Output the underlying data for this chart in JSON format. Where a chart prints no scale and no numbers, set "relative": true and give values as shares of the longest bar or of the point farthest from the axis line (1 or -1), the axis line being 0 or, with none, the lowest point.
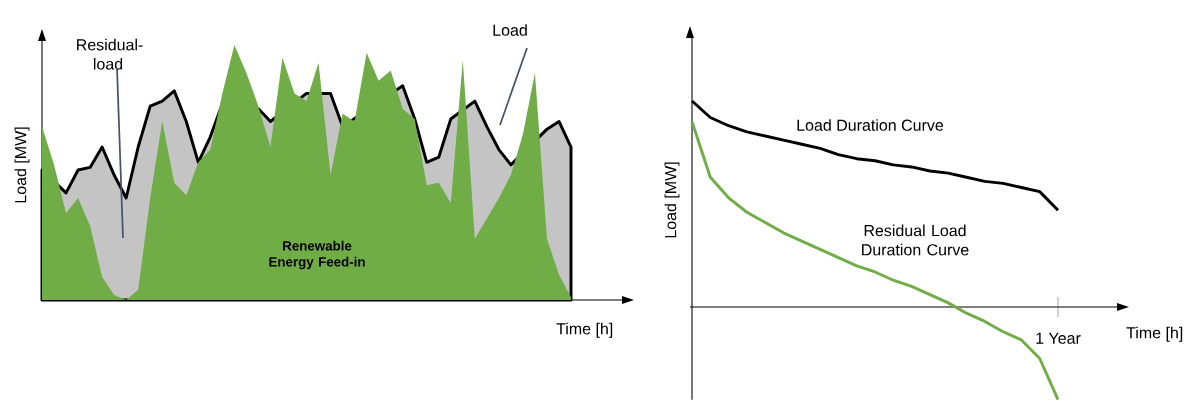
{
  "chart_data": [
    {
      "type": "line",
      "relative": true,
      "xlabel": "Time [h]",
      "ylabel": "Load [MW]",
      "annotations": [
        "Residual-load"
      ],
      "categories": [
        null,
        null,
        null,
        null,
        null,
        null,
        null,
        null,
        null,
        null,
        null,
        null,
        null,
        null,
        null,
        null,
        null,
        null,
        null,
        null,
        null,
        null,
        null,
        null,
        null,
        null,
        null,
        null,
        null,
        null,
        null,
        null,
        null,
        null,
        null,
        null,
        null,
        null,
        null,
        null,
        null,
        null,
        null,
        null,
        null
      ],
      "series": [
        {
          "name": "Load",
          "type": "area",
          "color": "#000000",
          "values": [
            0.51,
            null,
            0.42,
            0.51,
            0.52,
            0.6,
            0.49,
            0.4,
            0.6,
            0.76,
            0.78,
            0.82,
            0.7,
            0.54,
            0.64,
            0.77,
            null,
            null,
            0.75,
            0.7,
            null,
            null,
            0.81,
            0.81,
            0.81,
            0.68,
            null,
            null,
            null,
            null,
            0.84,
            0.71,
            0.54,
            0.56,
            0.71,
            null,
            0.78,
            0.68,
            0.59,
            0.53,
            null,
            null,
            0.67,
            0.7,
            0.6
          ]
        },
        {
          "name": "Renewable Energy Feed-in",
          "type": "area",
          "color": "#70ad47",
          "values": [
            0.68,
            0.53,
            0.34,
            0.4,
            0.29,
            0.09,
            0.02,
            0,
            0.04,
            0.4,
            0.7,
            0.46,
            0.41,
            0.54,
            0.59,
            0.81,
            1,
            0.89,
            0.76,
            0.6,
            0.95,
            0.81,
            0.78,
            0.93,
            0.49,
            0.73,
            0.7,
            0.97,
            0.86,
            0.9,
            0.75,
            0.71,
            0.45,
            0.46,
            0.38,
            0.94,
            0.24,
            0.32,
            0.4,
            0.49,
            0.65,
            0.89,
            0.24,
            0.1,
            0.01
          ]
        }
      ]
    },
    {
      "type": "line",
      "relative": true,
      "xlabel": "Time [h]",
      "ylabel": "Load [MW]",
      "annotations": [
        "1 Year"
      ],
      "categories": [
        null,
        null,
        null,
        null,
        null,
        null,
        null,
        null,
        null,
        null,
        null,
        null,
        null,
        null,
        null,
        null,
        null,
        null,
        null,
        null,
        null
      ],
      "series": [
        {
          "name": "Load Duration Curve",
          "color": "#000000",
          "values": [
            1.0,
            0.92,
            0.88,
            0.85,
            0.83,
            0.81,
            0.79,
            0.77,
            0.74,
            0.72,
            0.71,
            0.69,
            0.68,
            0.66,
            0.65,
            0.63,
            0.61,
            0.6,
            0.58,
            0.56,
            0.47
          ]
        },
        {
          "name": "Residual Load Duration Curve",
          "color": "#70ad47",
          "values": [
            0.9,
            0.63,
            0.53,
            0.46,
            0.41,
            0.36,
            0.32,
            0.28,
            0.24,
            0.2,
            0.17,
            0.13,
            0.1,
            0.06,
            0.02,
            -0.03,
            -0.07,
            -0.12,
            -0.16,
            -0.25,
            -0.45
          ]
        }
      ]
    }
  ]
}
